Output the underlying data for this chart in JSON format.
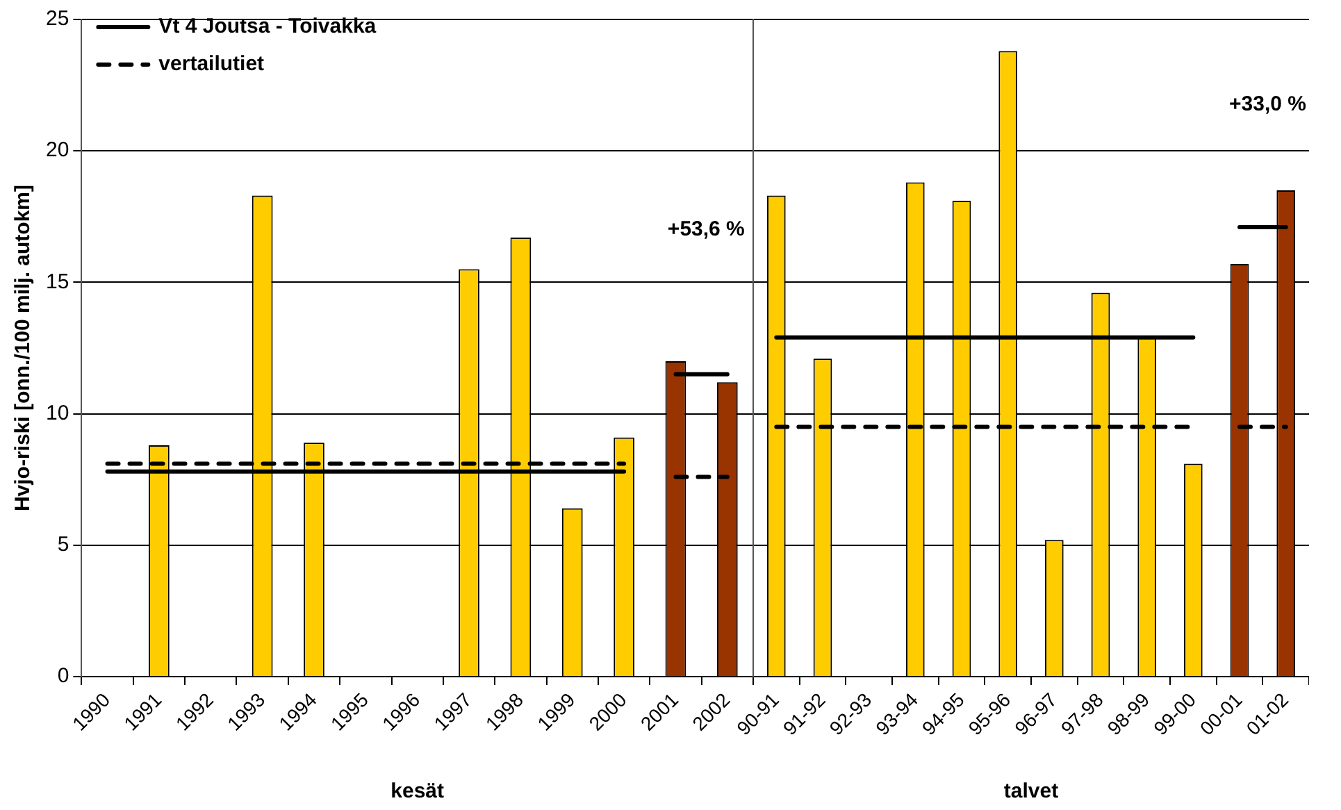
{
  "chart_data": [
    {
      "type": "bar",
      "xlabel": "kesät",
      "ylabel": "Hvjo-riski [onn./100 milj. autokm]",
      "categories": [
        "1990",
        "1991",
        "1992",
        "1993",
        "1994",
        "1995",
        "1996",
        "1997",
        "1998",
        "1999",
        "2000",
        "2001",
        "2002"
      ],
      "series": [
        {
          "colors": [
            "#ffcc00",
            "#ffcc00",
            "#ffcc00",
            "#ffcc00",
            "#ffcc00",
            "#ffcc00",
            "#ffcc00",
            "#ffcc00",
            "#ffcc00",
            "#ffcc00",
            "#ffcc00",
            "#993300",
            "#993300"
          ],
          "values": [
            null,
            8.8,
            null,
            18.3,
            8.9,
            null,
            null,
            15.5,
            16.7,
            6.4,
            9.1,
            12.0,
            11.2
          ]
        },
        {
          "type": "line",
          "name": "Vt 4 Joutsa - Toivakka",
          "color": "#000000",
          "line_style": "solid",
          "values": [
            7.8,
            7.8,
            7.8,
            7.8,
            7.8,
            7.8,
            7.8,
            7.8,
            7.8,
            7.8,
            7.8,
            null,
            null
          ]
        },
        {
          "type": "line",
          "color": "#000000",
          "line_style": "solid",
          "values": [
            null,
            null,
            null,
            null,
            null,
            null,
            null,
            null,
            null,
            null,
            null,
            11.5,
            11.5
          ]
        },
        {
          "type": "line",
          "name": "vertailutiet",
          "color": "#000000",
          "line_style": "dashed",
          "values": [
            8.1,
            8.1,
            8.1,
            8.1,
            8.1,
            8.1,
            8.1,
            8.1,
            8.1,
            8.1,
            8.1,
            null,
            null
          ]
        },
        {
          "type": "line",
          "color": "#000000",
          "line_style": "dashed",
          "values": [
            null,
            null,
            null,
            null,
            null,
            null,
            null,
            null,
            null,
            null,
            null,
            7.6,
            7.6
          ]
        }
      ],
      "ylim": [
        0,
        25
      ],
      "yticks": [
        0,
        5,
        10,
        15,
        20,
        25
      ],
      "grid": "y",
      "legend": "top left",
      "marker": "none",
      "annotations": [
        "+53,6 %"
      ]
    },
    {
      "type": "bar",
      "xlabel": "talvet",
      "categories": [
        "90-91",
        "91-92",
        "92-93",
        "93-94",
        "94-95",
        "95-96",
        "96-97",
        "97-98",
        "98-99",
        "99-00",
        "00-01",
        "01-02"
      ],
      "series": [
        {
          "colors": [
            "#ffcc00",
            "#ffcc00",
            "#ffcc00",
            "#ffcc00",
            "#ffcc00",
            "#ffcc00",
            "#ffcc00",
            "#ffcc00",
            "#ffcc00",
            "#ffcc00",
            "#993300",
            "#993300"
          ],
          "values": [
            18.3,
            12.1,
            null,
            18.8,
            18.1,
            23.8,
            5.2,
            14.6,
            12.9,
            8.1,
            15.7,
            18.5
          ]
        },
        {
          "type": "line",
          "color": "#000000",
          "line_style": "solid",
          "values": [
            12.9,
            12.9,
            12.9,
            12.9,
            12.9,
            12.9,
            12.9,
            12.9,
            12.9,
            12.9,
            null,
            null
          ]
        },
        {
          "type": "line",
          "color": "#000000",
          "line_style": "solid",
          "values": [
            null,
            null,
            null,
            null,
            null,
            null,
            null,
            null,
            null,
            null,
            17.1,
            17.1
          ]
        },
        {
          "type": "line",
          "color": "#000000",
          "line_style": "dashed",
          "values": [
            9.5,
            9.5,
            9.5,
            9.5,
            9.5,
            9.5,
            9.5,
            9.5,
            9.5,
            9.5,
            null,
            null
          ]
        },
        {
          "type": "line",
          "color": "#000000",
          "line_style": "dashed",
          "values": [
            null,
            null,
            null,
            null,
            null,
            null,
            null,
            null,
            null,
            null,
            9.5,
            9.5
          ]
        }
      ],
      "ylim": [
        0,
        25
      ],
      "yticks": [
        0,
        5,
        10,
        15,
        20,
        25
      ],
      "grid": "y",
      "marker": "none",
      "tick_labels": "x",
      "annotations": [
        "+33,0 %"
      ]
    }
  ]
}
